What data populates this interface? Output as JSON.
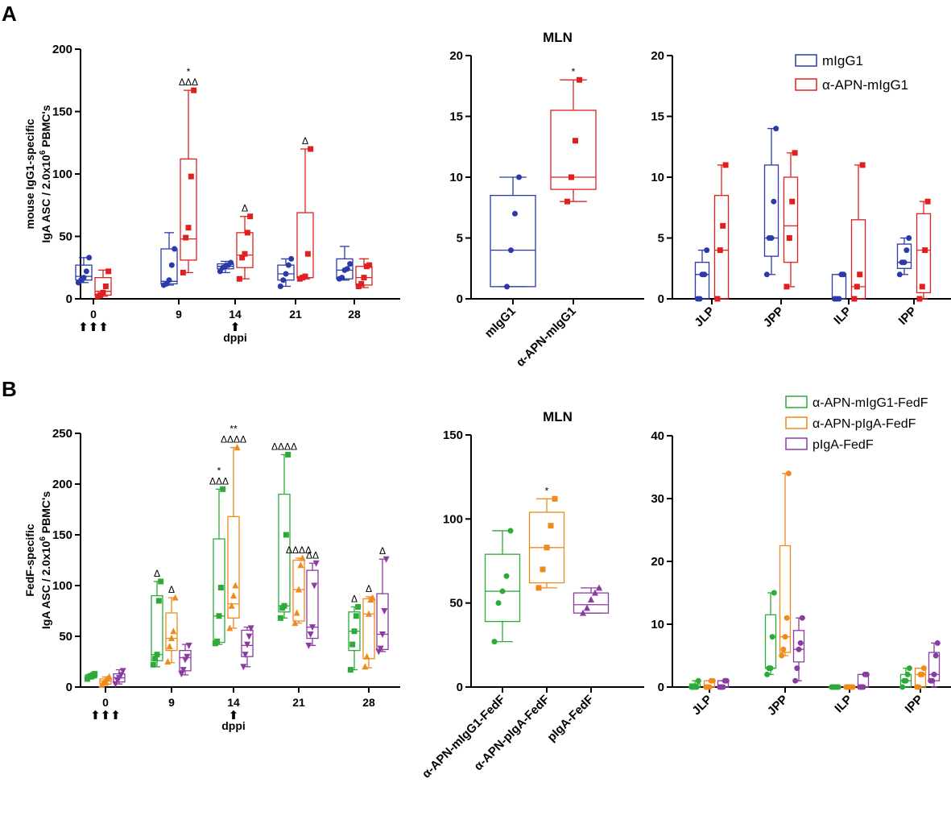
{
  "colors": {
    "mIgG1": "#2b3aa8",
    "aAPN_mIgG1": "#e02020",
    "aAPN_mIgG1_FedF": "#2eaa3a",
    "aAPN_pIgA_FedF": "#ef8a1c",
    "pIgA_FedF": "#8a3da0",
    "axis": "#000000"
  },
  "panel_letters": {
    "a": "A",
    "b": "B"
  },
  "legends": {
    "top": [
      {
        "label": "mIgG1",
        "color": "#2b3aa8"
      },
      {
        "label": "α-APN-mIgG1",
        "color": "#e02020"
      }
    ],
    "bottom": [
      {
        "label": "α-APN-mIgG1-FedF",
        "color": "#2eaa3a"
      },
      {
        "label": "α-APN-pIgA-FedF",
        "color": "#ef8a1c"
      },
      {
        "label": "pIgA-FedF",
        "color": "#8a3da0"
      }
    ]
  },
  "chart_data": [
    {
      "id": "A1",
      "type": "box",
      "title": "",
      "ylabel_line1": "mouse IgG1-specific",
      "ylabel_line2": "IgA ASC / 2.0x10",
      "ylabel_sup": "6",
      "ylabel_tail": " PBMC's",
      "xlabel": "dppi",
      "ylim": [
        0,
        200
      ],
      "yticks": [
        0,
        50,
        100,
        150,
        200
      ],
      "categories": [
        "0",
        "9",
        "14",
        "21",
        "28"
      ],
      "arrows": {
        "0": "⬆⬆⬆",
        "14": "⬆"
      },
      "series": [
        {
          "name": "mIgG1",
          "color": "#2b3aa8",
          "marker": "circle",
          "boxes": [
            {
              "min": 13,
              "q1": 15,
              "median": 18,
              "q3": 27,
              "max": 33,
              "points": [
                13,
                15,
                17,
                22,
                33
              ],
              "annot": ""
            },
            {
              "min": 11,
              "q1": 12,
              "median": 14,
              "q3": 40,
              "max": 53,
              "points": [
                11,
                12,
                15,
                27,
                40
              ],
              "annot": ""
            },
            {
              "min": 21,
              "q1": 24,
              "median": 26,
              "q3": 28,
              "max": 30,
              "points": [
                22,
                25,
                26,
                27,
                29
              ],
              "annot": ""
            },
            {
              "min": 10,
              "q1": 15,
              "median": 20,
              "q3": 27,
              "max": 32,
              "points": [
                10,
                15,
                20,
                27,
                32
              ],
              "annot": ""
            },
            {
              "min": 15,
              "q1": 16,
              "median": 23,
              "q3": 32,
              "max": 42,
              "points": [
                16,
                17,
                23,
                24,
                28
              ],
              "annot": ""
            }
          ]
        },
        {
          "name": "α-APN-mIgG1",
          "color": "#e02020",
          "marker": "square",
          "boxes": [
            {
              "min": 2,
              "q1": 3,
              "median": 6,
              "q3": 17,
              "max": 23,
              "points": [
                2,
                3,
                5,
                10,
                22
              ],
              "annot": ""
            },
            {
              "min": 21,
              "q1": 31,
              "median": 48,
              "q3": 112,
              "max": 167,
              "points": [
                21,
                49,
                57,
                98,
                167
              ],
              "annot": "*\nΔΔΔ"
            },
            {
              "min": 16,
              "q1": 25,
              "median": 35,
              "q3": 53,
              "max": 66,
              "points": [
                16,
                33,
                36,
                53,
                66
              ],
              "annot": "Δ"
            },
            {
              "min": 16,
              "q1": 17,
              "median": 17,
              "q3": 69,
              "max": 120,
              "points": [
                16,
                17,
                18,
                36,
                120
              ],
              "annot": "Δ"
            },
            {
              "min": 9,
              "q1": 11,
              "median": 17,
              "q3": 26,
              "max": 32,
              "points": [
                10,
                12,
                17,
                26,
                27
              ],
              "annot": ""
            }
          ]
        }
      ]
    },
    {
      "id": "A2",
      "type": "box",
      "title": "MLN",
      "ylim": [
        0,
        20
      ],
      "yticks": [
        0,
        5,
        10,
        15,
        20
      ],
      "categories": [
        "mIgG1",
        "α-APN-mIgG1"
      ],
      "boxes": [
        {
          "color": "#2b3aa8",
          "marker": "circle",
          "min": 1,
          "q1": 1,
          "median": 4,
          "q3": 8.5,
          "max": 10,
          "points": [
            1,
            4,
            7,
            10
          ],
          "annot": ""
        },
        {
          "color": "#e02020",
          "marker": "square",
          "min": 8,
          "q1": 9,
          "median": 10,
          "q3": 15.5,
          "max": 18,
          "points": [
            8,
            10,
            13,
            18
          ],
          "annot": "*"
        }
      ]
    },
    {
      "id": "A3",
      "type": "box",
      "title": "",
      "ylim": [
        0,
        20
      ],
      "yticks": [
        0,
        5,
        10,
        15,
        20
      ],
      "categories": [
        "JLP",
        "JPP",
        "ILP",
        "IPP"
      ],
      "series": [
        {
          "name": "mIgG1",
          "color": "#2b3aa8",
          "marker": "circle",
          "boxes": [
            {
              "min": 0,
              "q1": 0,
              "median": 2,
              "q3": 3,
              "max": 4,
              "points": [
                0,
                0,
                2,
                2,
                4
              ]
            },
            {
              "min": 2,
              "q1": 3.5,
              "median": 5,
              "q3": 11,
              "max": 14,
              "points": [
                2,
                5,
                5,
                8,
                14
              ]
            },
            {
              "min": 0,
              "q1": 0,
              "median": 0,
              "q3": 2,
              "max": 2,
              "points": [
                0,
                0,
                0,
                2,
                2
              ]
            },
            {
              "min": 2,
              "q1": 2.5,
              "median": 3,
              "q3": 4.5,
              "max": 5,
              "points": [
                2,
                3,
                3,
                4,
                5
              ]
            }
          ]
        },
        {
          "name": "α-APN-mIgG1",
          "color": "#e02020",
          "marker": "square",
          "boxes": [
            {
              "min": 0,
              "q1": 0,
              "median": 4,
              "q3": 8.5,
              "max": 11,
              "points": [
                0,
                4,
                6,
                11
              ]
            },
            {
              "min": 1,
              "q1": 3,
              "median": 6,
              "q3": 10,
              "max": 12,
              "points": [
                1,
                5,
                8,
                12
              ]
            },
            {
              "min": 0,
              "q1": 0,
              "median": 1,
              "q3": 6.5,
              "max": 11,
              "points": [
                0,
                1,
                2,
                11
              ]
            },
            {
              "min": 0,
              "q1": 0.5,
              "median": 4,
              "q3": 7,
              "max": 8,
              "points": [
                0,
                1,
                4,
                8
              ]
            }
          ]
        }
      ]
    },
    {
      "id": "B1",
      "type": "box",
      "title": "",
      "ylabel_line1": "FedF-specific",
      "ylabel_line2": "IgA ASC / 2.0x10",
      "ylabel_sup": "6",
      "ylabel_tail": " PBMC's",
      "xlabel": "dppi",
      "ylim": [
        0,
        250
      ],
      "yticks": [
        0,
        50,
        100,
        150,
        200,
        250
      ],
      "categories": [
        "0",
        "9",
        "14",
        "21",
        "28"
      ],
      "arrows": {
        "0": "⬆⬆⬆",
        "14": "⬆"
      },
      "series": [
        {
          "name": "α-APN-mIgG1-FedF",
          "color": "#2eaa3a",
          "marker": "square",
          "boxes": [
            {
              "min": 8,
              "q1": 9,
              "median": 10,
              "q3": 12,
              "max": 13,
              "points": [
                8,
                10,
                11,
                12,
                13
              ],
              "annot": ""
            },
            {
              "min": 20,
              "q1": 26,
              "median": 32,
              "q3": 90,
              "max": 104,
              "points": [
                22,
                28,
                32,
                85,
                104
              ],
              "annot": "Δ"
            },
            {
              "min": 42,
              "q1": 44,
              "median": 70,
              "q3": 146,
              "max": 195,
              "points": [
                43,
                45,
                70,
                98,
                195
              ],
              "annot": "*\nΔΔΔ"
            },
            {
              "min": 68,
              "q1": 74,
              "median": 80,
              "q3": 190,
              "max": 229,
              "points": [
                68,
                78,
                80,
                150,
                229
              ],
              "annot": "ΔΔΔΔ"
            },
            {
              "min": 17,
              "q1": 36,
              "median": 55,
              "q3": 74,
              "max": 79,
              "points": [
                17,
                42,
                55,
                70,
                79
              ],
              "annot": "Δ"
            }
          ]
        },
        {
          "name": "α-APN-pIgA-FedF",
          "color": "#ef8a1c",
          "marker": "triangle",
          "boxes": [
            {
              "min": 2,
              "q1": 3,
              "median": 6,
              "q3": 8,
              "max": 10,
              "points": [
                2,
                4,
                6,
                8,
                10
              ],
              "annot": ""
            },
            {
              "min": 24,
              "q1": 36,
              "median": 48,
              "q3": 73,
              "max": 88,
              "points": [
                25,
                40,
                48,
                55,
                88
              ],
              "annot": "Δ"
            },
            {
              "min": 58,
              "q1": 68,
              "median": 82,
              "q3": 168,
              "max": 236,
              "points": [
                58,
                80,
                90,
                100,
                236
              ],
              "annot": "**\nΔΔΔΔ"
            },
            {
              "min": 63,
              "q1": 65,
              "median": 96,
              "q3": 125,
              "max": 127,
              "points": [
                63,
                73,
                96,
                120,
                127
              ],
              "annot": "ΔΔΔΔ"
            },
            {
              "min": 19,
              "q1": 28,
              "median": 72,
              "q3": 87,
              "max": 89,
              "points": [
                20,
                30,
                72,
                86,
                88
              ],
              "annot": "Δ"
            }
          ]
        },
        {
          "name": "pIgA-FedF",
          "color": "#8a3da0",
          "marker": "inv-triangle",
          "boxes": [
            {
              "min": 3,
              "q1": 5,
              "median": 9,
              "q3": 13,
              "max": 17,
              "points": [
                3,
                7,
                9,
                12,
                16
              ],
              "annot": ""
            },
            {
              "min": 12,
              "q1": 16,
              "median": 29,
              "q3": 36,
              "max": 42,
              "points": [
                13,
                17,
                27,
                30,
                41
              ],
              "annot": ""
            },
            {
              "min": 20,
              "q1": 30,
              "median": 41,
              "q3": 56,
              "max": 59,
              "points": [
                20,
                32,
                42,
                50,
                58
              ],
              "annot": ""
            },
            {
              "min": 41,
              "q1": 48,
              "median": 59,
              "q3": 115,
              "max": 122,
              "points": [
                41,
                52,
                59,
                100,
                122
              ],
              "annot": "ΔΔ"
            },
            {
              "min": 35,
              "q1": 37,
              "median": 52,
              "q3": 92,
              "max": 126,
              "points": [
                35,
                38,
                52,
                75,
                126
              ],
              "annot": "Δ"
            }
          ]
        }
      ]
    },
    {
      "id": "B2",
      "type": "box",
      "title": "MLN",
      "ylim": [
        0,
        150
      ],
      "yticks": [
        0,
        50,
        100,
        150
      ],
      "categories": [
        "α-APN-mIgG1-FedF",
        "α-APN-pIgA-FedF",
        "pIgA-FedF"
      ],
      "boxes": [
        {
          "color": "#2eaa3a",
          "marker": "circle",
          "min": 27,
          "q1": 39,
          "median": 57,
          "q3": 79,
          "max": 93,
          "points": [
            27,
            50,
            57,
            66,
            93
          ],
          "annot": ""
        },
        {
          "color": "#ef8a1c",
          "marker": "square",
          "min": 59,
          "q1": 62,
          "median": 83,
          "q3": 104,
          "max": 112,
          "points": [
            59,
            70,
            83,
            96,
            112
          ],
          "annot": "*"
        },
        {
          "color": "#8a3da0",
          "marker": "triangle",
          "min": 44,
          "q1": 44,
          "median": 49,
          "q3": 56,
          "max": 59,
          "points": [
            44,
            47,
            52,
            56,
            59
          ],
          "annot": ""
        }
      ]
    },
    {
      "id": "B3",
      "type": "box",
      "title": "",
      "ylim": [
        0,
        40
      ],
      "yticks": [
        0,
        10,
        20,
        30,
        40
      ],
      "categories": [
        "JLP",
        "JPP",
        "ILP",
        "IPP"
      ],
      "series": [
        {
          "name": "α-APN-mIgG1-FedF",
          "color": "#2eaa3a",
          "marker": "circle",
          "boxes": [
            {
              "min": 0,
              "q1": 0,
              "median": 0,
              "q3": 0.5,
              "max": 1,
              "points": [
                0,
                0,
                0,
                0,
                1
              ]
            },
            {
              "min": 2,
              "q1": 3,
              "median": 3,
              "q3": 11.5,
              "max": 15,
              "points": [
                2,
                3,
                3,
                8,
                15
              ]
            },
            {
              "min": 0,
              "q1": 0,
              "median": 0,
              "q3": 0,
              "max": 0,
              "points": [
                0,
                0,
                0,
                0,
                0
              ]
            },
            {
              "min": 0,
              "q1": 0,
              "median": 1,
              "q3": 2,
              "max": 3,
              "points": [
                0,
                1,
                1,
                2,
                3
              ]
            }
          ]
        },
        {
          "name": "α-APN-pIgA-FedF",
          "color": "#ef8a1c",
          "marker": "circle",
          "boxes": [
            {
              "min": 0,
              "q1": 0,
              "median": 0,
              "q3": 1,
              "max": 1,
              "points": [
                0,
                0,
                0,
                1,
                1
              ]
            },
            {
              "min": 5,
              "q1": 5.5,
              "median": 8,
              "q3": 22.5,
              "max": 34,
              "points": [
                5,
                6,
                8,
                11,
                34
              ]
            },
            {
              "min": 0,
              "q1": 0,
              "median": 0,
              "q3": 0,
              "max": 0,
              "points": [
                0,
                0,
                0,
                0,
                0
              ]
            },
            {
              "min": 0,
              "q1": 0,
              "median": 2,
              "q3": 3,
              "max": 3,
              "points": [
                0,
                0,
                2,
                2,
                3
              ]
            }
          ]
        },
        {
          "name": "pIgA-FedF",
          "color": "#8a3da0",
          "marker": "circle",
          "boxes": [
            {
              "min": 0,
              "q1": 0,
              "median": 0,
              "q3": 1,
              "max": 1,
              "points": [
                0,
                0,
                0,
                1,
                1
              ]
            },
            {
              "min": 1,
              "q1": 4,
              "median": 6,
              "q3": 9,
              "max": 11,
              "points": [
                1,
                3,
                6,
                7,
                11
              ]
            },
            {
              "min": 0,
              "q1": 0,
              "median": 0,
              "q3": 2,
              "max": 2,
              "points": [
                0,
                0,
                0,
                2,
                2
              ]
            },
            {
              "min": 0,
              "q1": 1,
              "median": 2,
              "q3": 5.5,
              "max": 7,
              "points": [
                1,
                1,
                2,
                5,
                7
              ]
            }
          ]
        }
      ]
    }
  ]
}
